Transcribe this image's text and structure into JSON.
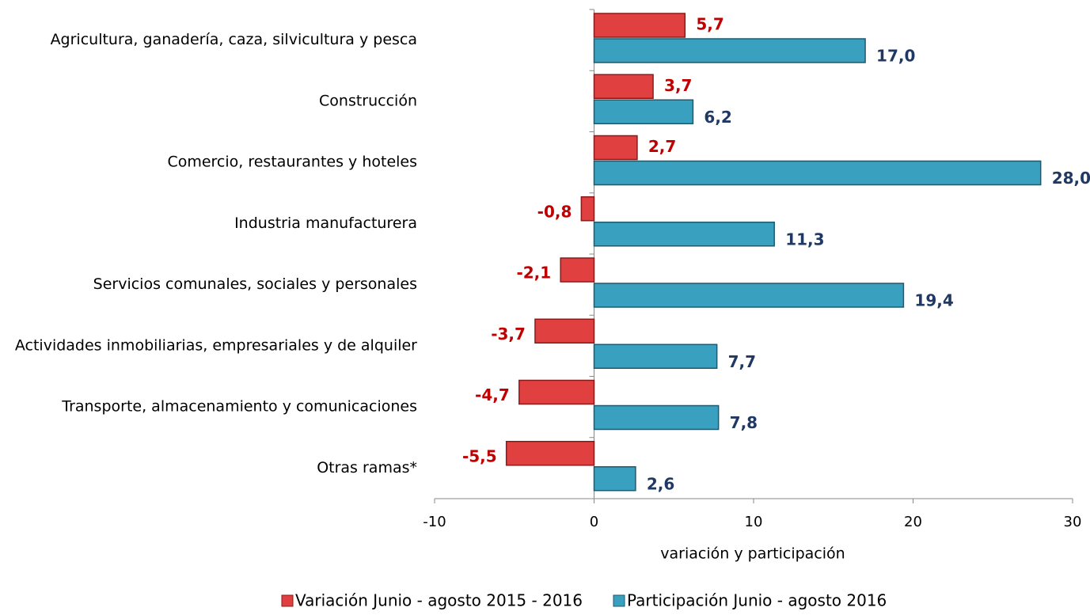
{
  "chart_data": {
    "type": "bar",
    "orientation": "horizontal",
    "categories": [
      "Agricultura, ganadería, caza, silvicultura y pesca",
      "Construcción",
      "Comercio, restaurantes y hoteles",
      "Industria manufacturera",
      "Servicios comunales, sociales y personales",
      "Actividades inmobiliarias, empresariales y de alquiler",
      "Transporte, almacenamiento y comunicaciones",
      "Otras ramas*"
    ],
    "series": [
      {
        "name": "Variación Junio - agosto 2015 - 2016",
        "color": "#e0403f",
        "label_color": "#c00000",
        "values": [
          5.7,
          3.7,
          2.7,
          -0.8,
          -2.1,
          -3.7,
          -4.7,
          -5.5
        ],
        "value_labels": [
          "5,7",
          "3,7",
          "2,7",
          "-0,8",
          "-2,1",
          "-3,7",
          "-4,7",
          "-5,5"
        ]
      },
      {
        "name": "Participación Junio - agosto 2016",
        "color": "#3aa0bf",
        "label_color": "#1f3864",
        "values": [
          17.0,
          6.2,
          28.0,
          11.3,
          19.4,
          7.7,
          7.8,
          2.6
        ],
        "value_labels": [
          "17,0",
          "6,2",
          "28,0",
          "11,3",
          "19,4",
          "7,7",
          "7,8",
          "2,6"
        ]
      }
    ],
    "xlabel": "variación y participación",
    "xlim": [
      -10,
      30
    ],
    "xticks": [
      -10,
      0,
      10,
      20,
      30
    ],
    "legend": "bottom"
  }
}
